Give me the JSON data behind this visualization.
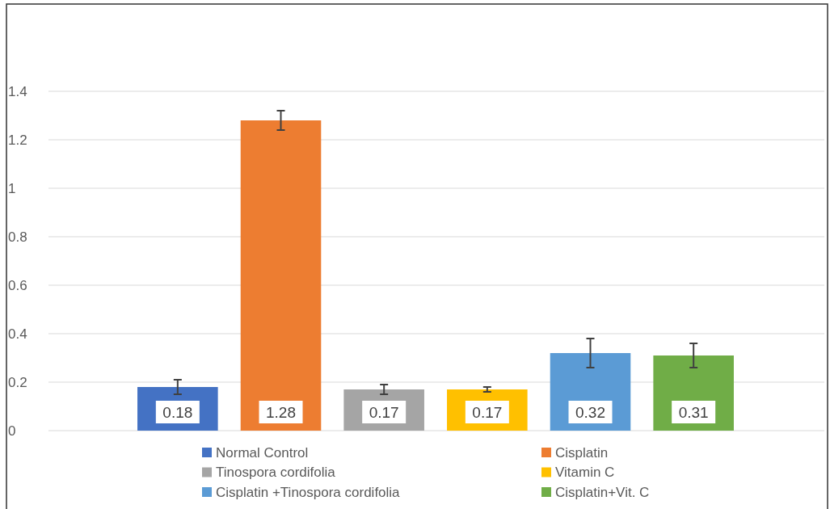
{
  "chart_data": {
    "type": "bar",
    "categories": [
      null,
      null,
      null,
      null,
      null,
      null
    ],
    "series": [
      {
        "name": "Normal Control",
        "color": "#4472c4",
        "values": [
          0.18,
          null,
          null,
          null,
          null,
          null
        ],
        "errors": [
          0.03,
          null,
          null,
          null,
          null,
          null
        ]
      },
      {
        "name": "Cisplatin",
        "color": "#ed7d31",
        "values": [
          null,
          1.28,
          null,
          null,
          null,
          null
        ],
        "errors": [
          null,
          0.04,
          null,
          null,
          null,
          null
        ]
      },
      {
        "name": "Tinospora cordifolia",
        "color": "#a5a5a5",
        "values": [
          null,
          null,
          0.17,
          null,
          null,
          null
        ],
        "errors": [
          null,
          null,
          0.02,
          null,
          null,
          null
        ]
      },
      {
        "name": "Vitamin C",
        "color": "#ffc000",
        "values": [
          null,
          null,
          null,
          0.17,
          null,
          null
        ],
        "errors": [
          null,
          null,
          null,
          0.01,
          null,
          null
        ]
      },
      {
        "name": "Cisplatin +Tinospora cordifolia",
        "color": "#5b9bd5",
        "values": [
          null,
          null,
          null,
          null,
          0.32,
          null
        ],
        "errors": [
          null,
          null,
          null,
          null,
          0.06,
          null
        ]
      },
      {
        "name": "Cisplatin+Vit. C",
        "color": "#70ad47",
        "values": [
          null,
          null,
          null,
          null,
          null,
          0.31
        ],
        "errors": [
          null,
          null,
          null,
          null,
          null,
          0.05
        ]
      }
    ],
    "ylim": [
      0,
      1.4
    ],
    "yticks": [
      0,
      0.2,
      0.4,
      0.6,
      0.8,
      1,
      1.2,
      1.4
    ],
    "grid": "y",
    "legend": "bottom",
    "data_labels": true,
    "stacked": true
  }
}
